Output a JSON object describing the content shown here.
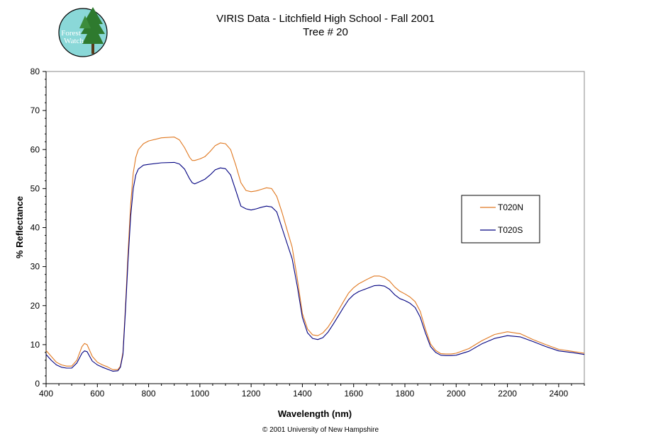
{
  "header": {
    "title_line1": "VIRIS Data - Litchfield High School - Fall 2001",
    "title_line2": "Tree # 20"
  },
  "logo": {
    "line1": "Forest",
    "line2": "Watch"
  },
  "footer": {
    "copyright": "© 2001 University of New Hampshire"
  },
  "colors": {
    "T020N": "#e07820",
    "T020S": "#000080",
    "logo_bg": "#8ad8d8",
    "tree": "#2e7a2e"
  },
  "chart_data": {
    "type": "line",
    "title": "VIRIS Data - Litchfield High School - Fall 2001",
    "subtitle": "Tree # 20",
    "xlabel": "Wavelength (nm)",
    "ylabel": "% Reflectance",
    "xlim": [
      400,
      2500
    ],
    "ylim": [
      0,
      80
    ],
    "xticks": [
      400,
      600,
      800,
      1000,
      1200,
      1400,
      1600,
      1800,
      2000,
      2200,
      2400
    ],
    "yticks": [
      0,
      10,
      20,
      30,
      40,
      50,
      60,
      70,
      80
    ],
    "grid": false,
    "legend": "right",
    "series": [
      {
        "name": "T020N",
        "x": [
          400,
          420,
          440,
          460,
          480,
          500,
          520,
          540,
          550,
          560,
          580,
          600,
          620,
          640,
          660,
          680,
          690,
          700,
          710,
          720,
          730,
          740,
          750,
          760,
          780,
          800,
          850,
          900,
          920,
          940,
          960,
          970,
          980,
          1000,
          1020,
          1040,
          1060,
          1080,
          1100,
          1120,
          1140,
          1160,
          1180,
          1200,
          1220,
          1240,
          1260,
          1280,
          1300,
          1320,
          1340,
          1360,
          1380,
          1400,
          1420,
          1440,
          1460,
          1480,
          1500,
          1520,
          1540,
          1560,
          1580,
          1600,
          1620,
          1640,
          1660,
          1680,
          1700,
          1720,
          1740,
          1760,
          1780,
          1800,
          1820,
          1840,
          1860,
          1880,
          1900,
          1920,
          1940,
          1960,
          1980,
          2000,
          2050,
          2100,
          2150,
          2200,
          2250,
          2300,
          2350,
          2400,
          2450,
          2500
        ],
        "y": [
          8.5,
          7,
          5.5,
          4.8,
          4.5,
          4.5,
          6,
          9.5,
          10.3,
          10,
          7,
          5.5,
          4.8,
          4.3,
          3.6,
          3.6,
          4.5,
          8,
          20,
          34,
          46,
          54,
          58,
          60,
          61.5,
          62.2,
          63,
          63.2,
          62.5,
          60.5,
          58,
          57.2,
          57.2,
          57.6,
          58.2,
          59.5,
          61,
          61.7,
          61.5,
          60,
          56,
          51.5,
          49.5,
          49.2,
          49.4,
          49.8,
          50.2,
          50,
          48,
          44,
          39.5,
          35,
          27,
          18,
          14,
          12.5,
          12.3,
          13,
          14.5,
          16.5,
          18.7,
          21,
          23.2,
          24.6,
          25.6,
          26.3,
          27,
          27.6,
          27.6,
          27.2,
          26.3,
          24.8,
          23.7,
          23,
          22.2,
          21,
          18.5,
          14,
          10.2,
          8.5,
          7.7,
          7.6,
          7.6,
          7.8,
          9,
          11,
          12.6,
          13.3,
          12.8,
          11.3,
          10,
          8.8,
          8.3,
          7.8
        ]
      },
      {
        "name": "T020S",
        "x": [
          400,
          420,
          440,
          460,
          480,
          500,
          520,
          540,
          550,
          560,
          580,
          600,
          620,
          640,
          660,
          680,
          690,
          700,
          710,
          720,
          730,
          740,
          750,
          760,
          780,
          800,
          850,
          900,
          920,
          940,
          960,
          970,
          980,
          1000,
          1020,
          1040,
          1060,
          1080,
          1100,
          1120,
          1140,
          1160,
          1180,
          1200,
          1220,
          1240,
          1260,
          1280,
          1300,
          1320,
          1340,
          1360,
          1380,
          1400,
          1420,
          1440,
          1460,
          1480,
          1500,
          1520,
          1540,
          1560,
          1580,
          1600,
          1620,
          1640,
          1660,
          1680,
          1700,
          1720,
          1740,
          1760,
          1780,
          1800,
          1820,
          1840,
          1860,
          1880,
          1900,
          1920,
          1940,
          1960,
          1980,
          2000,
          2050,
          2100,
          2150,
          2200,
          2250,
          2300,
          2350,
          2400,
          2450,
          2500
        ],
        "y": [
          7.5,
          6,
          4.8,
          4.2,
          4,
          4,
          5.3,
          7.8,
          8.4,
          8.2,
          5.8,
          4.8,
          4.2,
          3.7,
          3.2,
          3.3,
          4.2,
          7.5,
          19,
          32,
          43,
          50,
          53.5,
          55,
          56,
          56.2,
          56.6,
          56.7,
          56.3,
          55,
          52.5,
          51.5,
          51.2,
          51.8,
          52.4,
          53.5,
          54.8,
          55.3,
          55.1,
          53.5,
          49.5,
          45.5,
          44.8,
          44.5,
          44.8,
          45.2,
          45.5,
          45.3,
          44,
          40,
          36,
          32,
          25,
          17,
          13,
          11.6,
          11.3,
          11.8,
          13.2,
          15.2,
          17.3,
          19.5,
          21.5,
          22.8,
          23.6,
          24.1,
          24.6,
          25.1,
          25.2,
          25.0,
          24.2,
          22.8,
          21.8,
          21.3,
          20.6,
          19.5,
          17,
          13,
          9.5,
          8,
          7.3,
          7.2,
          7.2,
          7.3,
          8.3,
          10.2,
          11.6,
          12.3,
          12,
          10.8,
          9.5,
          8.4,
          8,
          7.5
        ]
      }
    ]
  }
}
